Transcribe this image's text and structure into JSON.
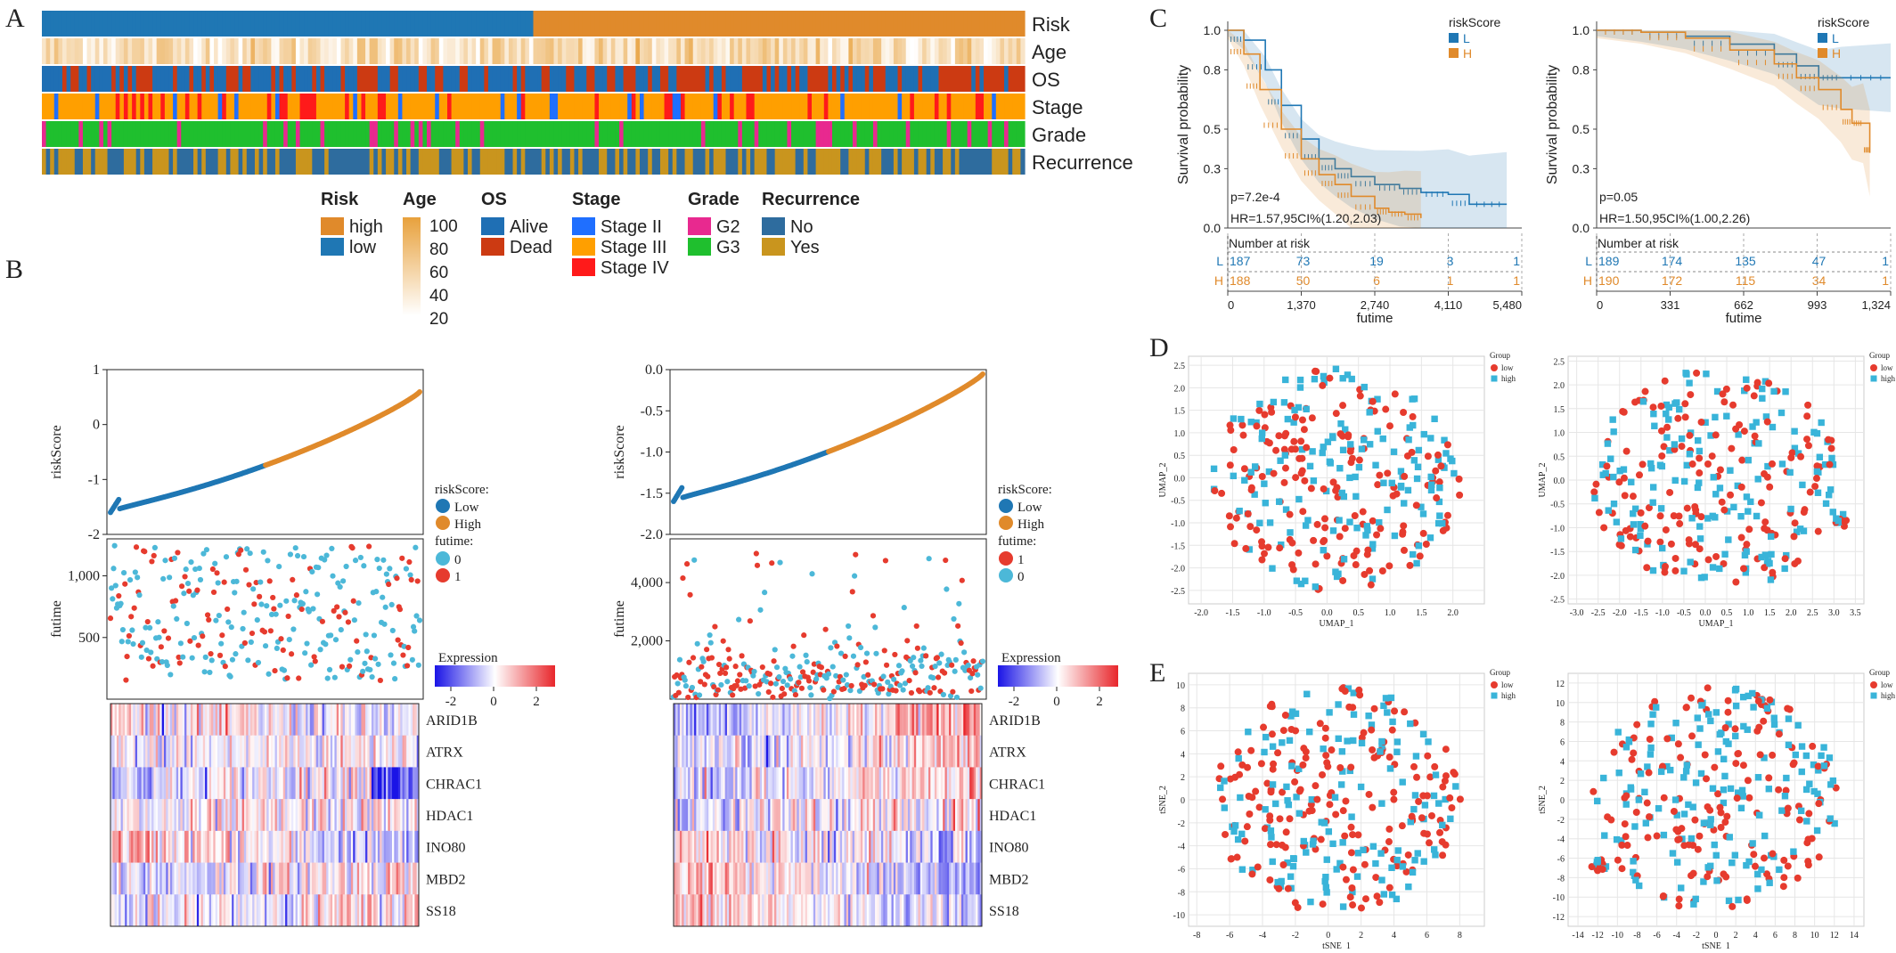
{
  "colors": {
    "blue": "#1f77b4",
    "orange": "#e08a2b",
    "heat_low": "#1a14e6",
    "heat_mid": "#ffffff",
    "heat_high": "#e8262b",
    "stage2": "#1f6fff",
    "stage3": "#ff9f00",
    "stage4": "#ff1a1a",
    "g2": "#e8298f",
    "g3": "#1fbf2e",
    "rec_no": "#2e6c9e",
    "rec_yes": "#c9951e",
    "alive": "#1f6fb4",
    "dead": "#cc3a12",
    "age_low": "#ffffff",
    "age_high": "#e8a13c",
    "cyan": "#4cb8d8",
    "red": "#e63b2e",
    "group_low": "#e63b2e",
    "group_high": "#39b4d9"
  },
  "panels": {
    "A": "A",
    "B": "B",
    "C": "C",
    "D": "D",
    "E": "E"
  },
  "chart_data": [
    {
      "id": "A",
      "type": "heatmap",
      "title": "",
      "rows": [
        "Risk",
        "Age",
        "OS",
        "Stage",
        "Grade",
        "Recurrence"
      ],
      "legend": {
        "risk": {
          "title": "Risk",
          "items": [
            "high",
            "low"
          ]
        },
        "age": {
          "title": "Age",
          "ticks": [
            "100",
            "80",
            "60",
            "40",
            "20"
          ]
        },
        "os": {
          "title": "OS",
          "items": [
            "Alive",
            "Dead"
          ]
        },
        "stage": {
          "title": "Stage",
          "items": [
            "Stage II",
            "Stage III",
            "Stage IV"
          ]
        },
        "grade": {
          "title": "Grade",
          "items": [
            "G2",
            "G3"
          ]
        },
        "recurrence": {
          "title": "Recurrence",
          "items": [
            "No",
            "Yes"
          ]
        }
      }
    },
    {
      "id": "B-left",
      "type": "scatter",
      "risk_ylabel": "riskScore",
      "risk_yticks": [
        "1",
        "0",
        "-1",
        "-2"
      ],
      "risk_ylim": [
        -2,
        1
      ],
      "risk_range": [
        -1.6,
        0.6
      ],
      "fut_ylabel": "futime",
      "fut_yticks": [
        "1,000",
        "500"
      ],
      "fut_ylim": [
        0,
        1300
      ],
      "legend_risk_title": "riskScore:",
      "legend_risk_items": [
        "Low",
        "High"
      ],
      "legend_fut_title": "futime:",
      "legend_fut_items": [
        "0",
        "1"
      ],
      "expr_title": "Expression",
      "expr_ticks": [
        "-2",
        "0",
        "2"
      ],
      "genes": [
        "ARID1B",
        "ATRX",
        "CHRAC1",
        "HDAC1",
        "INO80",
        "MBD2",
        "SS18"
      ]
    },
    {
      "id": "B-right",
      "type": "scatter",
      "risk_ylabel": "riskScore",
      "risk_yticks": [
        "0.0",
        "-0.5",
        "-1.0",
        "-1.5",
        "-2.0"
      ],
      "risk_ylim": [
        -2,
        0
      ],
      "risk_range": [
        -1.6,
        -0.05
      ],
      "fut_ylabel": "futime",
      "fut_yticks": [
        "4,000",
        "2,000"
      ],
      "fut_ylim": [
        0,
        5500
      ],
      "legend_risk_title": "riskScore:",
      "legend_risk_items": [
        "Low",
        "High"
      ],
      "legend_fut_title": "futime:",
      "legend_fut_items": [
        "1",
        "0"
      ],
      "expr_title": "Expression",
      "expr_ticks": [
        "-2",
        "0",
        "2"
      ],
      "genes": [
        "ARID1B",
        "ATRX",
        "CHRAC1",
        "HDAC1",
        "INO80",
        "MBD2",
        "SS18"
      ]
    },
    {
      "id": "C-left",
      "type": "line",
      "ylabel": "Survival probability",
      "xlabel": "futime",
      "yticks": [
        "1.0",
        "0.8",
        "0.5",
        "0.3",
        "0.0"
      ],
      "xticks": [
        "0",
        "1,370",
        "2,740",
        "4,110",
        "5,480"
      ],
      "xlim": [
        0,
        5480
      ],
      "legend_title": "riskScore",
      "series": [
        {
          "name": "L",
          "x": [
            0,
            300,
            700,
            1000,
            1370,
            1700,
            2000,
            2300,
            2740,
            3200,
            3600,
            4110,
            4500,
            5200
          ],
          "y": [
            1.0,
            0.95,
            0.8,
            0.62,
            0.45,
            0.35,
            0.3,
            0.26,
            0.22,
            0.2,
            0.18,
            0.17,
            0.12,
            0.12
          ]
        },
        {
          "name": "H",
          "x": [
            0,
            300,
            600,
            1000,
            1370,
            1700,
            2000,
            2300,
            2740,
            3000,
            3300,
            3600
          ],
          "y": [
            1.0,
            0.88,
            0.7,
            0.5,
            0.35,
            0.27,
            0.22,
            0.16,
            0.1,
            0.08,
            0.07,
            0.05
          ]
        }
      ],
      "pvalue": "p=7.2e-4",
      "hr": "HR=1.57,95CI%(1.20,2.03)",
      "risk_table_title": "Number at risk",
      "risk_table": [
        {
          "group": "L",
          "values": [
            "187",
            "73",
            "19",
            "3",
            "1"
          ]
        },
        {
          "group": "H",
          "values": [
            "188",
            "50",
            "6",
            "1",
            "1"
          ]
        }
      ]
    },
    {
      "id": "C-right",
      "type": "line",
      "ylabel": "Survival probability",
      "xlabel": "futime",
      "yticks": [
        "1.0",
        "0.8",
        "0.5",
        "0.3",
        "0.0"
      ],
      "xticks": [
        "0",
        "331",
        "662",
        "993",
        "1,324"
      ],
      "xlim": [
        0,
        1324
      ],
      "legend_title": "riskScore",
      "series": [
        {
          "name": "L",
          "x": [
            0,
            200,
            400,
            600,
            800,
            900,
            1000,
            1100,
            1324
          ],
          "y": [
            1.0,
            0.99,
            0.97,
            0.93,
            0.88,
            0.82,
            0.76,
            0.76,
            0.76
          ]
        },
        {
          "name": "H",
          "x": [
            0,
            200,
            400,
            600,
            800,
            900,
            1000,
            1100,
            1150,
            1200,
            1230
          ],
          "y": [
            1.0,
            0.99,
            0.96,
            0.9,
            0.83,
            0.76,
            0.7,
            0.6,
            0.53,
            0.53,
            0.38
          ]
        }
      ],
      "pvalue": "p=0.05",
      "hr": "HR=1.50,95CI%(1.00,2.26)",
      "risk_table_title": "Number at risk",
      "risk_table": [
        {
          "group": "L",
          "values": [
            "189",
            "174",
            "135",
            "47",
            "1"
          ]
        },
        {
          "group": "H",
          "values": [
            "190",
            "172",
            "115",
            "34",
            "1"
          ]
        }
      ]
    },
    {
      "id": "D-left",
      "type": "scatter",
      "xlabel": "UMAP_1",
      "ylabel": "UMAP_2",
      "xticks": [
        "-2.0",
        "-1.5",
        "-1.0",
        "-0.5",
        "0.0",
        "0.5",
        "1.0",
        "1.5",
        "2.0"
      ],
      "yticks": [
        "2.5",
        "2.0",
        "1.5",
        "1.0",
        "0.5",
        "0.0",
        "-0.5",
        "-1.0",
        "-1.5",
        "-2.0",
        "-2.5"
      ],
      "xlim": [
        -2.2,
        2.5
      ],
      "ylim": [
        -2.8,
        2.7
      ],
      "legend_title": "Group",
      "legend_items": [
        "low",
        "high"
      ]
    },
    {
      "id": "D-right",
      "type": "scatter",
      "xlabel": "UMAP_1",
      "ylabel": "UMAP_2",
      "xticks": [
        "-3.0",
        "-2.5",
        "-2.0",
        "-1.5",
        "-1.0",
        "-0.5",
        "0.0",
        "0.5",
        "1.0",
        "1.5",
        "2.0",
        "2.5",
        "3.0",
        "3.5"
      ],
      "yticks": [
        "2.5",
        "2.0",
        "1.5",
        "1.0",
        "0.5",
        "0.0",
        "-0.5",
        "-1.0",
        "-1.5",
        "-2.0",
        "-2.5"
      ],
      "xlim": [
        -3.2,
        3.7
      ],
      "ylim": [
        -2.6,
        2.6
      ],
      "legend_title": "Group",
      "legend_items": [
        "low",
        "high"
      ]
    },
    {
      "id": "E-left",
      "type": "scatter",
      "xlabel": "tSNE_1",
      "ylabel": "tSNE_2",
      "xticks": [
        "-8",
        "-6",
        "-4",
        "-2",
        "0",
        "2",
        "4",
        "6",
        "8"
      ],
      "yticks": [
        "10",
        "8",
        "6",
        "4",
        "2",
        "0",
        "-2",
        "-4",
        "-6",
        "-8",
        "-10"
      ],
      "xlim": [
        -8.5,
        9.5
      ],
      "ylim": [
        -11,
        11
      ],
      "legend_title": "Group",
      "legend_items": [
        "low",
        "high"
      ]
    },
    {
      "id": "E-right",
      "type": "scatter",
      "xlabel": "tSNE_1",
      "ylabel": "tSNE_2",
      "xticks": [
        "-14",
        "-12",
        "-10",
        "-8",
        "-6",
        "-4",
        "-2",
        "0",
        "2",
        "4",
        "6",
        "8",
        "10",
        "12",
        "14"
      ],
      "yticks": [
        "12",
        "10",
        "8",
        "6",
        "4",
        "2",
        "0",
        "-2",
        "-4",
        "-6",
        "-8",
        "-10",
        "-12"
      ],
      "xlim": [
        -15,
        15
      ],
      "ylim": [
        -13,
        13
      ],
      "legend_title": "Group",
      "legend_items": [
        "low",
        "high"
      ]
    }
  ]
}
